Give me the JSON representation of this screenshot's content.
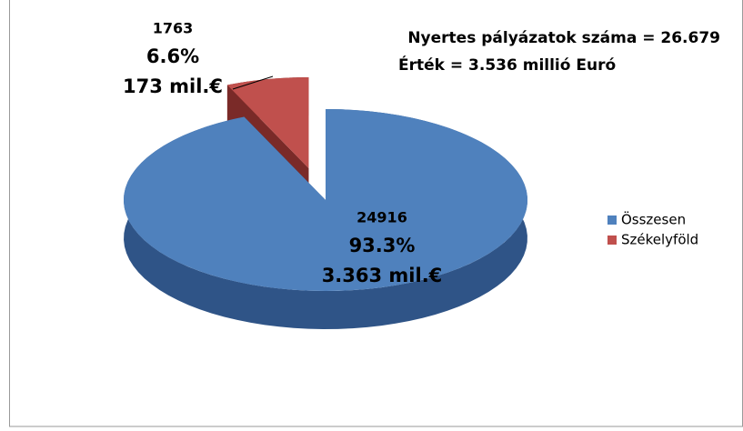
{
  "chart_data": {
    "type": "pie3d",
    "annotations": [
      "Nyertes pályázatok száma  = 26.679",
      "Érték = 3.536 millió Euró"
    ],
    "categories": [
      "Összesen",
      "Székelyföld"
    ],
    "values": [
      93.3,
      6.6
    ],
    "value_labels": [
      "93.3%",
      "6.6%"
    ],
    "counts": [
      24916,
      1763
    ],
    "amount_labels": [
      "3.363 mil.€",
      "173 mil.€"
    ],
    "colors": [
      "#4f81bd",
      "#c0504d"
    ],
    "side_colors": [
      "#2f5487",
      "#7a2a28"
    ],
    "exploded": [
      false,
      true
    ],
    "legend": "right"
  }
}
